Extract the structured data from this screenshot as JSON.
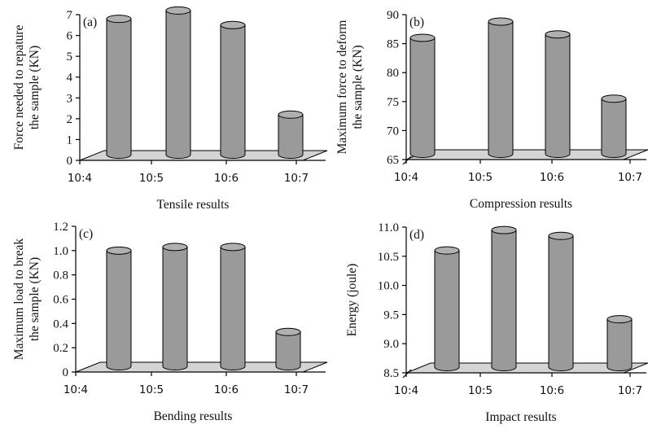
{
  "chart_data": [
    {
      "type": "bar",
      "panel_label": "(a)",
      "title": "",
      "categories": [
        "10:4",
        "10:5",
        "10:6",
        "10:7"
      ],
      "values": [
        6.8,
        7.2,
        6.5,
        2.2
      ],
      "ylabel": "Force needed to repature the sample (KN)",
      "ylabel_lines": [
        "Force needed to repature",
        "the sample (KN)"
      ],
      "xlabel": "Tensile results",
      "ylim": [
        0,
        7
      ],
      "yticks": [
        "0",
        "1",
        "2",
        "3",
        "4",
        "5",
        "6",
        "7"
      ],
      "grid": false,
      "style": "3d-cylinder",
      "colors": {
        "bar": "#9a9a9a",
        "floor": "#d4d4d4"
      }
    },
    {
      "type": "bar",
      "panel_label": "(b)",
      "title": "",
      "categories": [
        "10:4",
        "10:5",
        "10:6",
        "10:7"
      ],
      "values": [
        86.0,
        88.8,
        86.6,
        75.5
      ],
      "ylabel": "Maximum force to deform the sample (KN)",
      "ylabel_lines": [
        "Maximum force to deform",
        "the sample (KN)"
      ],
      "xlabel": "Compression results",
      "ylim": [
        65,
        90
      ],
      "yticks": [
        "65",
        "70",
        "75",
        "80",
        "85",
        "90"
      ],
      "grid": false,
      "style": "3d-cylinder",
      "colors": {
        "bar": "#9a9a9a",
        "floor": "#d4d4d4"
      }
    },
    {
      "type": "bar",
      "panel_label": "(c)",
      "title": "",
      "categories": [
        "10:4",
        "10:5",
        "10:6",
        "10:7"
      ],
      "values": [
        1.0,
        1.03,
        1.03,
        0.33
      ],
      "ylabel": "Maximum load to break the sample (KN)",
      "ylabel_lines": [
        "Maximum load to break",
        "the sample (KN)"
      ],
      "xlabel": "Bending results",
      "ylim": [
        0,
        1.2
      ],
      "yticks": [
        "0",
        "0.2",
        "0.4",
        "0.6",
        "0.8",
        "1.0",
        "1.2"
      ],
      "grid": false,
      "style": "3d-cylinder",
      "colors": {
        "bar": "#9a9a9a",
        "floor": "#d4d4d4"
      }
    },
    {
      "type": "bar",
      "panel_label": "(d)",
      "title": "",
      "categories": [
        "10:4",
        "10:5",
        "10:6",
        "10:7"
      ],
      "values": [
        10.6,
        10.95,
        10.85,
        9.42
      ],
      "ylabel": "Energy (joule)",
      "ylabel_lines": [
        "Energy (joule)"
      ],
      "xlabel": "Impact results",
      "ylim": [
        8.5,
        11.0
      ],
      "yticks": [
        "8.5",
        "9.0",
        "9.5",
        "10.0",
        "10.5",
        "11.0"
      ],
      "grid": false,
      "style": "3d-cylinder",
      "colors": {
        "bar": "#9a9a9a",
        "floor": "#d4d4d4"
      }
    }
  ]
}
